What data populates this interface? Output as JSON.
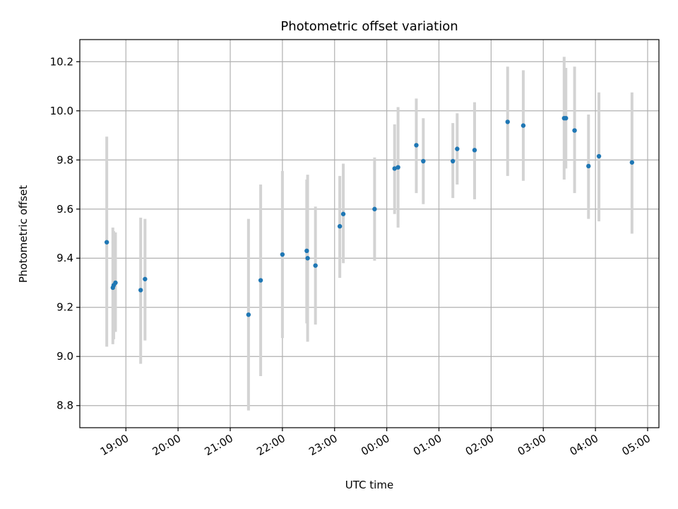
{
  "chart_data": {
    "type": "scatter",
    "title": "Photometric offset variation",
    "xlabel": "UTC time",
    "ylabel": "Photometric offset",
    "x_ticks": [
      "19:00",
      "20:00",
      "21:00",
      "22:00",
      "23:00",
      "00:00",
      "01:00",
      "02:00",
      "03:00",
      "04:00",
      "05:00"
    ],
    "y_ticks": [
      "8.8",
      "9.0",
      "9.2",
      "9.4",
      "9.6",
      "9.8",
      "10.0",
      "10.2"
    ],
    "xlim": [
      "2023-01-01T18:07",
      "2023-01-02T05:13"
    ],
    "ylim": [
      8.71,
      10.29
    ],
    "grid": true,
    "marker_color": "#1f77b4",
    "errorbar_color": "#d3d3d3",
    "points": [
      {
        "x": "2023-01-01T18:38",
        "y": 9.465,
        "ylow": 9.04,
        "yhigh": 9.895
      },
      {
        "x": "2023-01-01T18:45",
        "y": 9.28,
        "ylow": 9.05,
        "yhigh": 9.525
      },
      {
        "x": "2023-01-01T18:46",
        "y": 9.29,
        "ylow": 9.07,
        "yhigh": 9.51
      },
      {
        "x": "2023-01-01T18:48",
        "y": 9.3,
        "ylow": 9.1,
        "yhigh": 9.505
      },
      {
        "x": "2023-01-01T19:17",
        "y": 9.27,
        "ylow": 8.97,
        "yhigh": 9.565
      },
      {
        "x": "2023-01-01T19:22",
        "y": 9.315,
        "ylow": 9.065,
        "yhigh": 9.56
      },
      {
        "x": "2023-01-01T21:21",
        "y": 9.17,
        "ylow": 8.78,
        "yhigh": 9.56
      },
      {
        "x": "2023-01-01T21:35",
        "y": 9.31,
        "ylow": 8.92,
        "yhigh": 9.7
      },
      {
        "x": "2023-01-01T22:00",
        "y": 9.415,
        "ylow": 9.075,
        "yhigh": 9.755
      },
      {
        "x": "2023-01-01T22:28",
        "y": 9.43,
        "ylow": 9.135,
        "yhigh": 9.72
      },
      {
        "x": "2023-01-01T22:29",
        "y": 9.4,
        "ylow": 9.06,
        "yhigh": 9.74
      },
      {
        "x": "2023-01-01T22:38",
        "y": 9.37,
        "ylow": 9.13,
        "yhigh": 9.61
      },
      {
        "x": "2023-01-01T23:06",
        "y": 9.53,
        "ylow": 9.32,
        "yhigh": 9.735
      },
      {
        "x": "2023-01-01T23:10",
        "y": 9.58,
        "ylow": 9.38,
        "yhigh": 9.785
      },
      {
        "x": "2023-01-01T23:46",
        "y": 9.6,
        "ylow": 9.39,
        "yhigh": 9.81
      },
      {
        "x": "2023-01-02T00:09",
        "y": 9.765,
        "ylow": 9.58,
        "yhigh": 9.945
      },
      {
        "x": "2023-01-02T00:13",
        "y": 9.77,
        "ylow": 9.525,
        "yhigh": 10.015
      },
      {
        "x": "2023-01-02T00:34",
        "y": 9.86,
        "ylow": 9.665,
        "yhigh": 10.05
      },
      {
        "x": "2023-01-02T00:42",
        "y": 9.795,
        "ylow": 9.62,
        "yhigh": 9.97
      },
      {
        "x": "2023-01-02T01:16",
        "y": 9.795,
        "ylow": 9.645,
        "yhigh": 9.95
      },
      {
        "x": "2023-01-02T01:21",
        "y": 9.845,
        "ylow": 9.7,
        "yhigh": 9.99
      },
      {
        "x": "2023-01-02T01:41",
        "y": 9.84,
        "ylow": 9.64,
        "yhigh": 10.035
      },
      {
        "x": "2023-01-02T02:19",
        "y": 9.955,
        "ylow": 9.735,
        "yhigh": 10.18
      },
      {
        "x": "2023-01-02T02:37",
        "y": 9.94,
        "ylow": 9.715,
        "yhigh": 10.165
      },
      {
        "x": "2023-01-02T03:24",
        "y": 9.97,
        "ylow": 9.72,
        "yhigh": 10.22
      },
      {
        "x": "2023-01-02T03:26",
        "y": 9.97,
        "ylow": 9.765,
        "yhigh": 10.175
      },
      {
        "x": "2023-01-02T03:36",
        "y": 9.92,
        "ylow": 9.665,
        "yhigh": 10.18
      },
      {
        "x": "2023-01-02T03:52",
        "y": 9.775,
        "ylow": 9.56,
        "yhigh": 9.985
      },
      {
        "x": "2023-01-02T04:04",
        "y": 9.815,
        "ylow": 9.55,
        "yhigh": 10.075
      },
      {
        "x": "2023-01-02T04:42",
        "y": 9.79,
        "ylow": 9.5,
        "yhigh": 10.075
      }
    ]
  }
}
